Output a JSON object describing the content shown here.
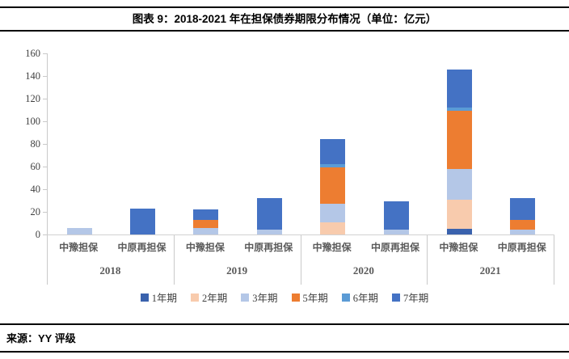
{
  "header": {
    "title": "图表 9：2018-2021 年在担保债券期限分布情况（单位：亿元）"
  },
  "footer": {
    "source": "来源：YY 评级"
  },
  "chart_data": {
    "type": "bar",
    "stacked": true,
    "title": "图表 9：2018-2021 年在担保债券期限分布情况（单位：亿元）",
    "unit": "亿元",
    "groups": [
      "2018",
      "2019",
      "2020",
      "2021"
    ],
    "categories": [
      "中豫担保",
      "中原再担保",
      "中豫担保",
      "中原再担保",
      "中豫担保",
      "中原再担保",
      "中豫担保",
      "中原再担保"
    ],
    "series": [
      {
        "name": "1年期",
        "color": "#3A62AD",
        "values": [
          0,
          0,
          0,
          0,
          0,
          0,
          5,
          0
        ]
      },
      {
        "name": "2年期",
        "color": "#F8CBAD",
        "values": [
          0,
          0,
          0,
          0,
          11,
          0,
          26,
          0
        ]
      },
      {
        "name": "3年期",
        "color": "#B4C7E7",
        "values": [
          6,
          0,
          6,
          4,
          16,
          4,
          27,
          4
        ]
      },
      {
        "name": "5年期",
        "color": "#ED7D31",
        "values": [
          0,
          0,
          7,
          0,
          32,
          0,
          51,
          9
        ]
      },
      {
        "name": "6年期",
        "color": "#5B9BD5",
        "values": [
          0,
          0,
          0,
          0,
          3,
          0,
          3,
          0
        ]
      },
      {
        "name": "7年期",
        "color": "#4472C4",
        "values": [
          0,
          23,
          9,
          28,
          22,
          25,
          34,
          19
        ]
      }
    ],
    "ylim": [
      0,
      160
    ],
    "ytick_step": 20,
    "yticks": [
      "0",
      "20",
      "40",
      "60",
      "80",
      "100",
      "120",
      "140",
      "160"
    ],
    "legend_position": "bottom",
    "grid": false,
    "axis_color": "#C9C9C9"
  }
}
